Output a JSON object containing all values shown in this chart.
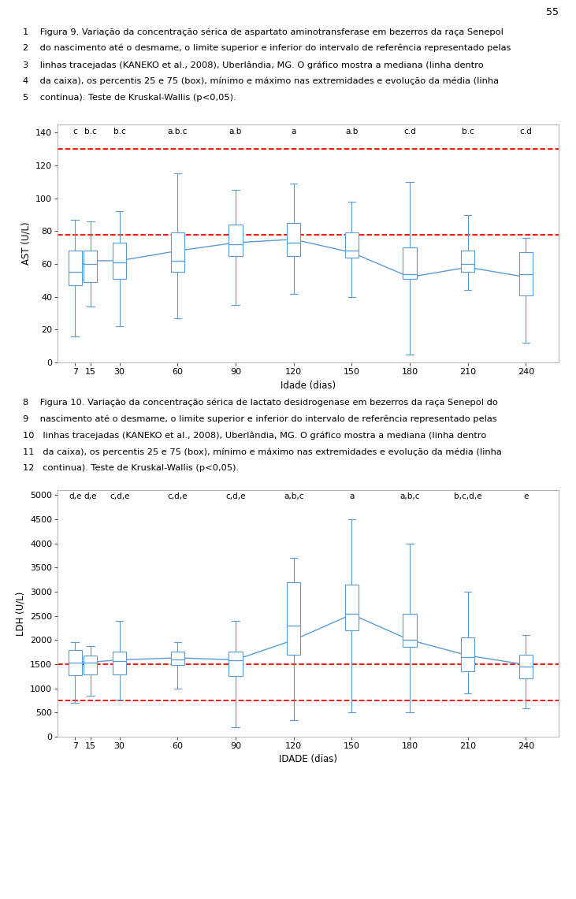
{
  "page_number": "55",
  "chart1": {
    "title_lines": [
      "1    Figura 9. Variação da concentração sérica de aspartato aminotransferase em bezerros da raça Senepol",
      "2    do nascimento até o desmame, o limite superior e inferior do intervalo de referência representado pelas",
      "3    linhas tracejadas (KANEKO et al., 2008), Uberlândia, MG. O gráfico mostra a mediana (linha dentro",
      "4    da caixa), os percentis 25 e 75 (box), mínimo e máximo nas extremidades e evolução da média (linha",
      "5    continua). Teste de Kruskal-Wallis (p<0,05)."
    ],
    "x_labels": [
      7,
      15,
      30,
      60,
      90,
      120,
      150,
      180,
      210,
      240
    ],
    "x_label": "Idade (dias)",
    "y_label": "AST (U/L)",
    "y_lim": [
      0,
      145
    ],
    "y_ticks": [
      0,
      20,
      40,
      60,
      80,
      100,
      120,
      140
    ],
    "ref_upper": 130,
    "ref_lower": 78,
    "stat_labels": [
      "c",
      "b.c",
      "b.c",
      "a.b.c",
      "a.b",
      "a",
      "a.b",
      "c.d",
      "b.c",
      "c.d"
    ],
    "box_data": {
      "7": {
        "min": 16,
        "q1": 47,
        "median": 55,
        "q3": 68,
        "max": 87
      },
      "15": {
        "min": 34,
        "q1": 49,
        "median": 60,
        "q3": 68,
        "max": 86
      },
      "30": {
        "min": 22,
        "q1": 51,
        "median": 61,
        "q3": 73,
        "max": 92
      },
      "60": {
        "min": 27,
        "q1": 55,
        "median": 62,
        "q3": 79,
        "max": 115
      },
      "90": {
        "min": 35,
        "q1": 65,
        "median": 72,
        "q3": 84,
        "max": 105
      },
      "120": {
        "min": 42,
        "q1": 65,
        "median": 73,
        "q3": 85,
        "max": 109
      },
      "150": {
        "min": 40,
        "q1": 64,
        "median": 68,
        "q3": 79,
        "max": 98
      },
      "180": {
        "min": 5,
        "q1": 51,
        "median": 54,
        "q3": 70,
        "max": 110
      },
      "210": {
        "min": 44,
        "q1": 55,
        "median": 60,
        "q3": 68,
        "max": 90
      },
      "240": {
        "min": 12,
        "q1": 41,
        "median": 54,
        "q3": 67,
        "max": 76
      }
    },
    "mean_line": [
      58,
      62,
      62,
      68,
      73,
      75,
      67,
      52,
      58,
      52
    ],
    "box_color": "white",
    "line_color": "#5b9bd5",
    "ref_color": "#ff0000"
  },
  "chart2": {
    "title_lines": [
      "8    Figura 10. Variação da concentração sérica de lactato desidrogenase em bezerros da raça Senepol do",
      "9    nascimento até o desmame, o limite superior e inferior do intervalo de referência representado pelas",
      "10   linhas tracejadas (KANEKO et al., 2008), Uberlândia, MG. O gráfico mostra a mediana (linha dentro",
      "11   da caixa), os percentis 25 e 75 (box), mínimo e máximo nas extremidades e evolução da média (linha",
      "12   continua). Teste de Kruskal-Wallis (p<0,05)."
    ],
    "x_labels": [
      7,
      15,
      30,
      60,
      90,
      120,
      150,
      180,
      210,
      240
    ],
    "x_label": "IDADE (dias)",
    "y_label": "LDH (U/L)",
    "y_lim": [
      0,
      5100
    ],
    "y_ticks": [
      0,
      500,
      1000,
      1500,
      2000,
      2500,
      3000,
      3500,
      4000,
      4500,
      5000
    ],
    "ref_upper": 1500,
    "ref_lower": 750,
    "stat_labels": [
      "d,e",
      "d,e",
      "c,d,e",
      "c,d,e",
      "c,d,e",
      "a,b,c",
      "a",
      "a,b,c",
      "b,c,d,e",
      "e"
    ],
    "box_data": {
      "7": {
        "min": 700,
        "q1": 1270,
        "median": 1530,
        "q3": 1800,
        "max": 1950
      },
      "15": {
        "min": 850,
        "q1": 1280,
        "median": 1530,
        "q3": 1680,
        "max": 1880
      },
      "30": {
        "min": 770,
        "q1": 1290,
        "median": 1560,
        "q3": 1760,
        "max": 2400
      },
      "60": {
        "min": 1000,
        "q1": 1490,
        "median": 1600,
        "q3": 1760,
        "max": 1950
      },
      "90": {
        "min": 200,
        "q1": 1250,
        "median": 1580,
        "q3": 1760,
        "max": 2400
      },
      "120": {
        "min": 350,
        "q1": 1700,
        "median": 2300,
        "q3": 3200,
        "max": 3700
      },
      "150": {
        "min": 500,
        "q1": 2200,
        "median": 2550,
        "q3": 3150,
        "max": 4500
      },
      "180": {
        "min": 500,
        "q1": 1850,
        "median": 2000,
        "q3": 2550,
        "max": 4000
      },
      "210": {
        "min": 900,
        "q1": 1350,
        "median": 1650,
        "q3": 2050,
        "max": 3000
      },
      "240": {
        "min": 580,
        "q1": 1200,
        "median": 1450,
        "q3": 1700,
        "max": 2100
      }
    },
    "mean_line": [
      1560,
      1540,
      1590,
      1630,
      1590,
      2000,
      2530,
      2000,
      1680,
      1490
    ],
    "box_color": "white",
    "line_color": "#5b9bd5",
    "ref_color": "#ff0000"
  }
}
